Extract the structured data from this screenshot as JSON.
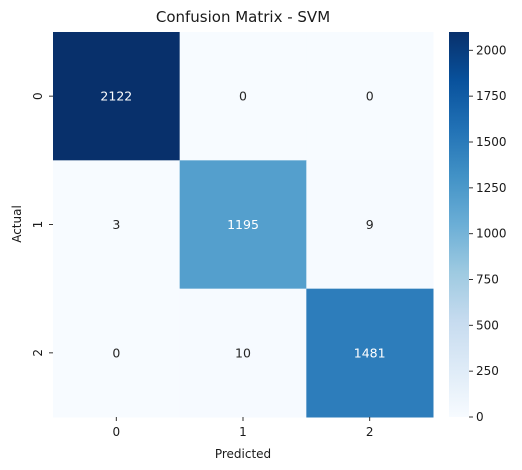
{
  "chart_data": {
    "type": "heatmap",
    "title": "Confusion Matrix - SVM",
    "xlabel": "Predicted",
    "ylabel": "Actual",
    "x_categories": [
      "0",
      "1",
      "2"
    ],
    "y_categories": [
      "0",
      "1",
      "2"
    ],
    "values": [
      [
        2122,
        0,
        0
      ],
      [
        3,
        1195,
        9
      ],
      [
        0,
        10,
        1481
      ]
    ],
    "colormap": "Blues",
    "colorbar": {
      "range": [
        0,
        2100
      ],
      "ticks": [
        "0",
        "250",
        "500",
        "750",
        "1000",
        "1250",
        "1500",
        "1750",
        "2000"
      ]
    },
    "colors": {
      "low": "#f7fbff",
      "high": "#08306b",
      "annot_dark": "#262626",
      "annot_light": "#ffffff"
    }
  }
}
